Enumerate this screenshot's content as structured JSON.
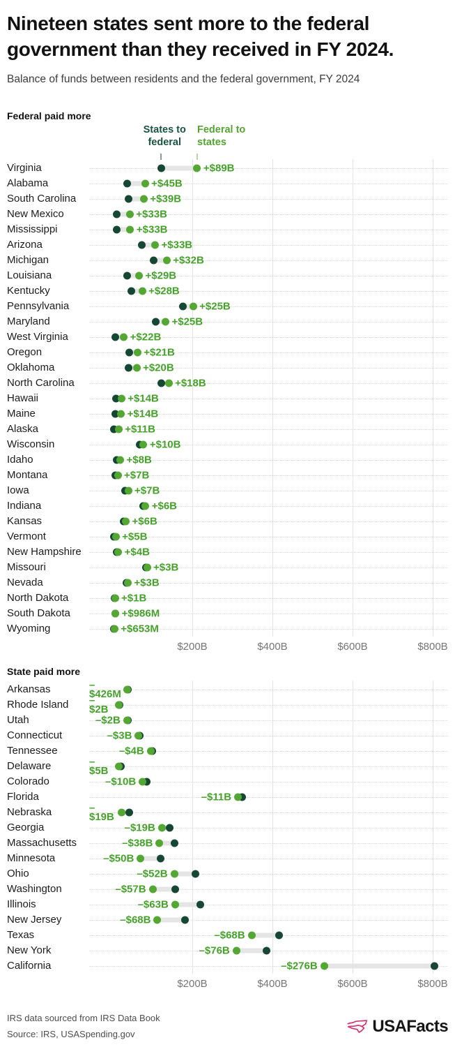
{
  "header": {
    "title": "Nineteen states sent more to the federal government than they received in FY 2024.",
    "subtitle": "Balance of funds between residents and the federal government, FY 2024"
  },
  "legend": {
    "sent_label": "States to federal",
    "received_label": "Federal to states"
  },
  "footer": {
    "note": "IRS data sourced from IRS Data Book",
    "source": "Source: IRS, USASpending.gov",
    "logo_text": "USAFacts"
  },
  "colors": {
    "sent_dot": "#154734",
    "received_dot": "#54a733",
    "value_text": "#47a22c",
    "sent_legend_text": "#1a5340",
    "received_legend_text": "#55a433",
    "logo_pink": "#d63471"
  },
  "chart_data": [
    {
      "type": "dumbbell",
      "section_title": "Federal paid more",
      "units": "billions of USD",
      "series_names": [
        "States to federal",
        "Federal to states"
      ],
      "xlim": [
        0,
        860
      ],
      "xticks": [
        200,
        400,
        600,
        800
      ],
      "xtick_labels": [
        "$200B",
        "$400B",
        "$600B",
        "$800B"
      ],
      "rows": [
        {
          "state": "Virginia",
          "sent": 123,
          "received": 212,
          "balance_label": "+$89B"
        },
        {
          "state": "Alabama",
          "sent": 37,
          "received": 82,
          "balance_label": "+$45B"
        },
        {
          "state": "South Carolina",
          "sent": 40,
          "received": 79,
          "balance_label": "+$39B"
        },
        {
          "state": "New Mexico",
          "sent": 11,
          "received": 44,
          "balance_label": "+$33B"
        },
        {
          "state": "Mississippi",
          "sent": 12,
          "received": 45,
          "balance_label": "+$33B"
        },
        {
          "state": "Arizona",
          "sent": 74,
          "received": 107,
          "balance_label": "+$33B"
        },
        {
          "state": "Michigan",
          "sent": 104,
          "received": 136,
          "balance_label": "+$32B"
        },
        {
          "state": "Louisiana",
          "sent": 38,
          "received": 67,
          "balance_label": "+$29B"
        },
        {
          "state": "Kentucky",
          "sent": 47,
          "received": 75,
          "balance_label": "+$28B"
        },
        {
          "state": "Pennsylvania",
          "sent": 177,
          "received": 202,
          "balance_label": "+$25B"
        },
        {
          "state": "Maryland",
          "sent": 108,
          "received": 133,
          "balance_label": "+$25B"
        },
        {
          "state": "West Virginia",
          "sent": 7,
          "received": 29,
          "balance_label": "+$22B"
        },
        {
          "state": "Oregon",
          "sent": 42,
          "received": 63,
          "balance_label": "+$21B"
        },
        {
          "state": "Oklahoma",
          "sent": 41,
          "received": 61,
          "balance_label": "+$20B"
        },
        {
          "state": "North Carolina",
          "sent": 123,
          "received": 141,
          "balance_label": "+$18B"
        },
        {
          "state": "Hawaii",
          "sent": 9,
          "received": 23,
          "balance_label": "+$14B"
        },
        {
          "state": "Maine",
          "sent": 8,
          "received": 22,
          "balance_label": "+$14B"
        },
        {
          "state": "Alaska",
          "sent": 5,
          "received": 16,
          "balance_label": "+$11B"
        },
        {
          "state": "Wisconsin",
          "sent": 68,
          "received": 78,
          "balance_label": "+$10B"
        },
        {
          "state": "Idaho",
          "sent": 12,
          "received": 20,
          "balance_label": "+$8B"
        },
        {
          "state": "Montana",
          "sent": 7,
          "received": 14,
          "balance_label": "+$7B"
        },
        {
          "state": "Iowa",
          "sent": 33,
          "received": 40,
          "balance_label": "+$7B"
        },
        {
          "state": "Indiana",
          "sent": 77,
          "received": 83,
          "balance_label": "+$6B"
        },
        {
          "state": "Kansas",
          "sent": 28,
          "received": 34,
          "balance_label": "+$6B"
        },
        {
          "state": "Vermont",
          "sent": 4,
          "received": 9,
          "balance_label": "+$5B"
        },
        {
          "state": "New Hampshire",
          "sent": 11,
          "received": 15,
          "balance_label": "+$4B"
        },
        {
          "state": "Missouri",
          "sent": 84,
          "received": 87,
          "balance_label": "+$3B"
        },
        {
          "state": "Nevada",
          "sent": 36,
          "received": 39,
          "balance_label": "+$3B"
        },
        {
          "state": "North Dakota",
          "sent": 6,
          "received": 7,
          "balance_label": "+$1B"
        },
        {
          "state": "South Dakota",
          "sent": 7,
          "received": 8,
          "balance_label": "+$986M"
        },
        {
          "state": "Wyoming",
          "sent": 5,
          "received": 5.7,
          "balance_label": "+$653M"
        }
      ]
    },
    {
      "type": "dumbbell",
      "section_title": "State paid more",
      "units": "billions of USD",
      "series_names": [
        "States to federal",
        "Federal to states"
      ],
      "xlim": [
        0,
        860
      ],
      "xticks": [
        200,
        400,
        600,
        800
      ],
      "xtick_labels": [
        "$200B",
        "$400B",
        "$600B",
        "$800B"
      ],
      "rows": [
        {
          "state": "Arkansas",
          "sent": 38.4,
          "received": 38,
          "balance_label": "–$426M",
          "wrap": true
        },
        {
          "state": "Rhode Island",
          "sent": 18,
          "received": 16,
          "balance_label": "–$2B",
          "wrap": true
        },
        {
          "state": "Utah",
          "sent": 39,
          "received": 37,
          "balance_label": "–$2B"
        },
        {
          "state": "Connecticut",
          "sent": 69,
          "received": 66,
          "balance_label": "–$3B"
        },
        {
          "state": "Tennessee",
          "sent": 100,
          "received": 96,
          "balance_label": "–$4B"
        },
        {
          "state": "Delaware",
          "sent": 21,
          "received": 16,
          "balance_label": "–$5B",
          "wrap": true
        },
        {
          "state": "Colorado",
          "sent": 86,
          "received": 76,
          "balance_label": "–$10B"
        },
        {
          "state": "Florida",
          "sent": 325,
          "received": 314,
          "balance_label": "–$11B"
        },
        {
          "state": "Nebraska",
          "sent": 43,
          "received": 24,
          "balance_label": "–$19B",
          "wrap": true
        },
        {
          "state": "Georgia",
          "sent": 143,
          "received": 124,
          "balance_label": "–$19B"
        },
        {
          "state": "Massachusetts",
          "sent": 156,
          "received": 118,
          "balance_label": "–$38B"
        },
        {
          "state": "Minnesota",
          "sent": 121,
          "received": 71,
          "balance_label": "–$50B"
        },
        {
          "state": "Ohio",
          "sent": 207,
          "received": 155,
          "balance_label": "–$52B"
        },
        {
          "state": "Washington",
          "sent": 158,
          "received": 101,
          "balance_label": "–$57B"
        },
        {
          "state": "Illinois",
          "sent": 220,
          "received": 157,
          "balance_label": "–$63B"
        },
        {
          "state": "New Jersey",
          "sent": 181,
          "received": 113,
          "balance_label": "–$68B"
        },
        {
          "state": "Texas",
          "sent": 416,
          "received": 348,
          "balance_label": "–$68B"
        },
        {
          "state": "New York",
          "sent": 386,
          "received": 310,
          "balance_label": "–$76B"
        },
        {
          "state": "California",
          "sent": 805,
          "received": 529,
          "balance_label": "–$276B"
        }
      ]
    }
  ]
}
